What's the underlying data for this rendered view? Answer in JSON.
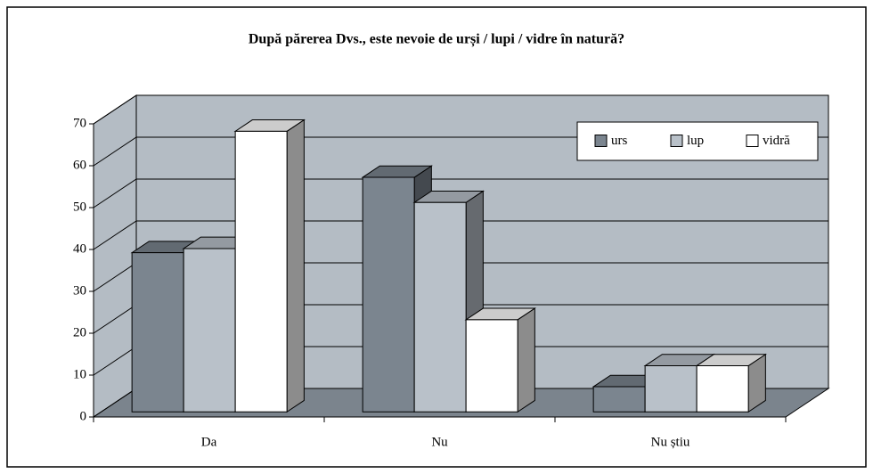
{
  "chart_data": {
    "type": "bar3d",
    "title": "După părerea Dvs., este nevoie de urși / lupi / vidre în natură?",
    "categories": [
      "Da",
      "Nu",
      "Nu știu"
    ],
    "series": [
      {
        "name": "urs",
        "color": "#7b858f",
        "values": [
          38,
          56,
          6
        ]
      },
      {
        "name": "lup",
        "color": "#b9c1c9",
        "values": [
          39,
          50,
          11
        ]
      },
      {
        "name": "vidră",
        "color": "#ffffff",
        "values": [
          67,
          22,
          11
        ]
      }
    ],
    "ylim": [
      0,
      70
    ],
    "yticks": [
      0,
      10,
      20,
      30,
      40,
      50,
      60,
      70
    ],
    "grid": true,
    "legend": "top-right",
    "wall_color": "#b4bcc4",
    "floor_color": "#7b848d"
  }
}
